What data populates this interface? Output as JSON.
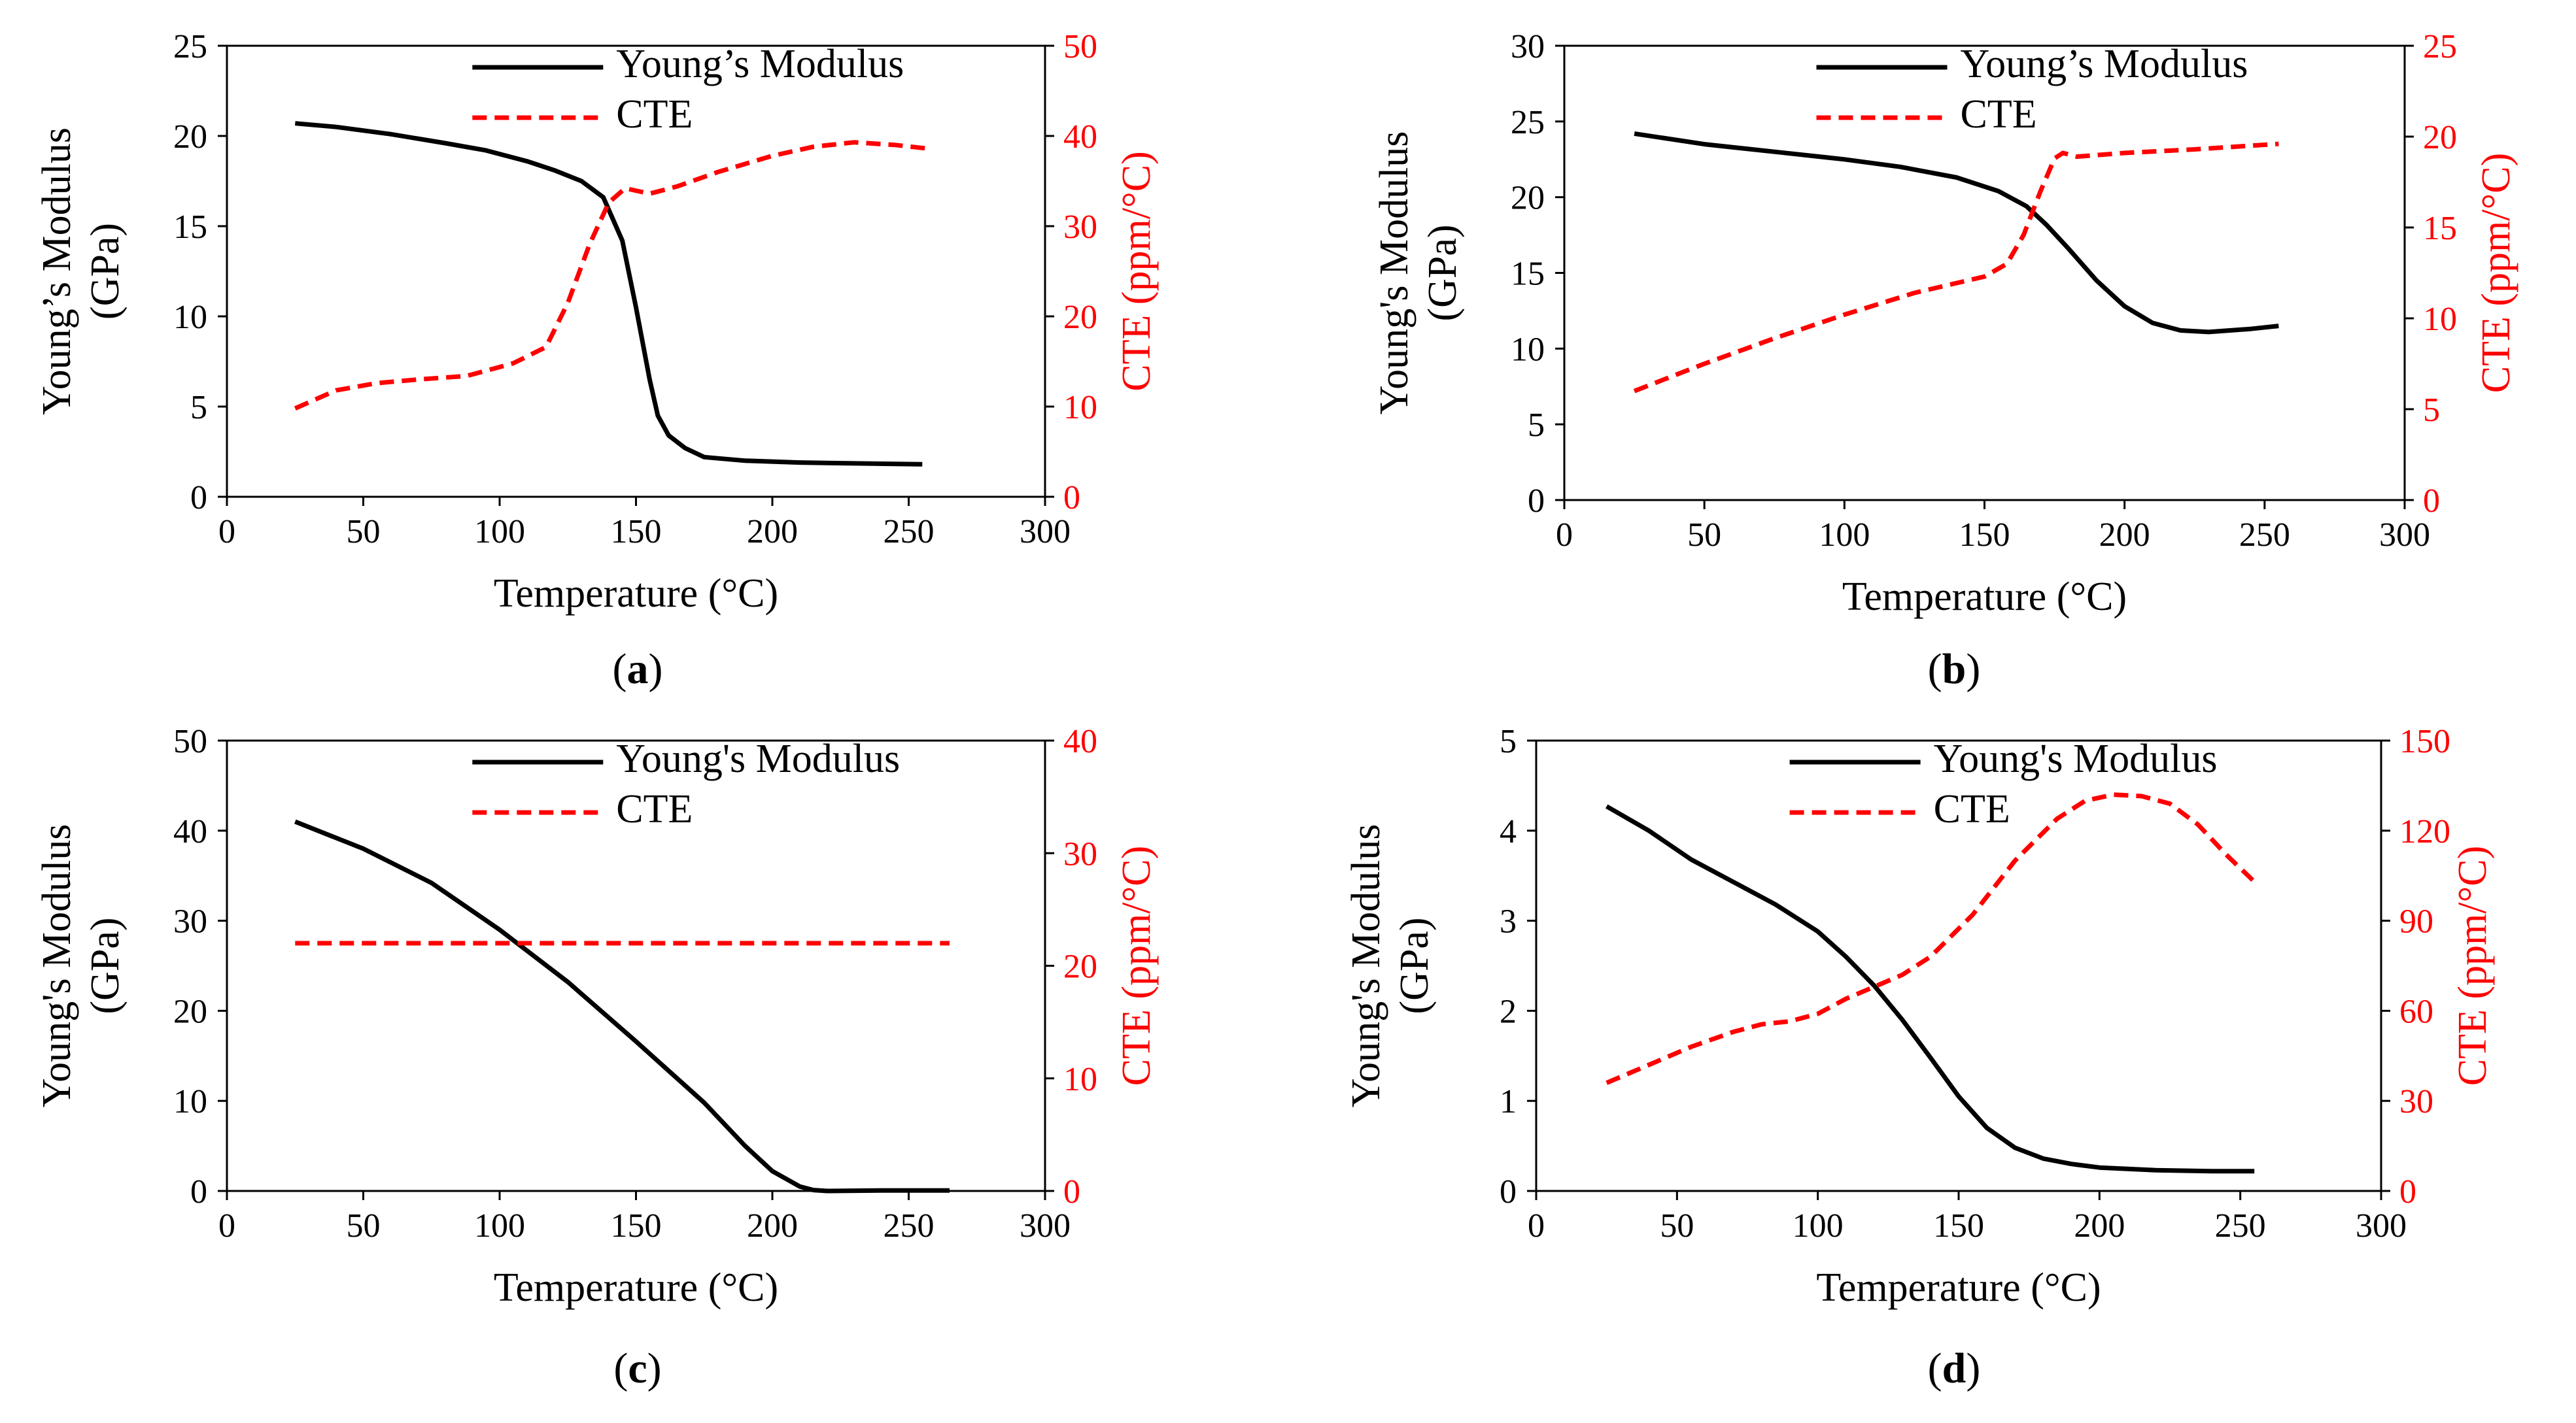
{
  "colors": {
    "modulus": "#000000",
    "cte": "#ff0000",
    "axis": "#000000"
  },
  "chart_data": [
    {
      "type": "line",
      "panel_label": "a",
      "xlabel": "Temperature (°C)",
      "ylabel_line1": "Young’s Modulus",
      "ylabel_line2": "(GPa)",
      "y2label": "CTE (ppm/°C)",
      "xlim": [
        0,
        300
      ],
      "xticks": [
        0,
        50,
        100,
        150,
        200,
        250,
        300
      ],
      "ylim": [
        0,
        25
      ],
      "yticks": [
        0,
        5,
        10,
        15,
        20,
        25
      ],
      "y2lim": [
        0,
        50
      ],
      "y2ticks": [
        0,
        10,
        20,
        30,
        40,
        50
      ],
      "legend": {
        "position": "top",
        "modulus_label": "Young’s Modulus",
        "cte_label": "CTE"
      },
      "series": [
        {
          "name": "Young’s Modulus",
          "axis": "left",
          "style": "solid",
          "x": [
            25,
            40,
            60,
            80,
            95,
            110,
            120,
            130,
            138,
            145,
            150,
            155,
            158,
            162,
            168,
            175,
            190,
            210,
            230,
            255
          ],
          "y": [
            20.7,
            20.5,
            20.1,
            19.6,
            19.2,
            18.6,
            18.1,
            17.5,
            16.6,
            14.2,
            10.5,
            6.5,
            4.5,
            3.4,
            2.7,
            2.2,
            2.0,
            1.9,
            1.85,
            1.8
          ]
        },
        {
          "name": "CTE",
          "axis": "right",
          "style": "dashed",
          "x": [
            25,
            40,
            55,
            70,
            88,
            105,
            117,
            125,
            133,
            140,
            146,
            155,
            165,
            180,
            200,
            215,
            230,
            245,
            257
          ],
          "y": [
            9.8,
            11.8,
            12.6,
            13.0,
            13.4,
            14.8,
            16.6,
            21.5,
            28.0,
            32.6,
            34.2,
            33.6,
            34.4,
            36.0,
            37.8,
            38.8,
            39.3,
            39.0,
            38.6
          ]
        }
      ]
    },
    {
      "type": "line",
      "panel_label": "b",
      "xlabel": "Temperature (°C)",
      "ylabel_line1": "Young's Modulus",
      "ylabel_line2": "(GPa)",
      "y2label": "CTE (ppm/°C)",
      "xlim": [
        0,
        300
      ],
      "xticks": [
        0,
        50,
        100,
        150,
        200,
        250,
        300
      ],
      "ylim": [
        0,
        30
      ],
      "yticks": [
        0,
        5,
        10,
        15,
        20,
        25,
        30
      ],
      "y2lim": [
        0,
        25
      ],
      "y2ticks": [
        0,
        5,
        10,
        15,
        20,
        25
      ],
      "legend": {
        "position": "top",
        "modulus_label": "Young’s Modulus",
        "cte_label": "CTE"
      },
      "series": [
        {
          "name": "Young’s Modulus",
          "axis": "left",
          "style": "solid",
          "x": [
            25,
            50,
            75,
            100,
            120,
            140,
            155,
            165,
            172,
            180,
            190,
            200,
            210,
            220,
            230,
            245,
            255
          ],
          "y": [
            24.2,
            23.5,
            23.0,
            22.5,
            22.0,
            21.3,
            20.4,
            19.4,
            18.2,
            16.6,
            14.5,
            12.8,
            11.7,
            11.2,
            11.1,
            11.3,
            11.5
          ]
        },
        {
          "name": "CTE",
          "axis": "right",
          "style": "dashed",
          "x": [
            25,
            50,
            75,
            100,
            125,
            150,
            158,
            164,
            170,
            175,
            178,
            183,
            200,
            225,
            255
          ],
          "y": [
            6.0,
            7.5,
            8.9,
            10.2,
            11.4,
            12.3,
            13.0,
            14.6,
            17.0,
            18.8,
            19.1,
            18.9,
            19.1,
            19.3,
            19.6
          ]
        }
      ]
    },
    {
      "type": "line",
      "panel_label": "c",
      "xlabel": "Temperature (°C)",
      "ylabel_line1": "Young's Modulus",
      "ylabel_line2": "(GPa)",
      "y2label": "CTE (ppm/°C)",
      "xlim": [
        0,
        300
      ],
      "xticks": [
        0,
        50,
        100,
        150,
        200,
        250,
        300
      ],
      "ylim": [
        0,
        50
      ],
      "yticks": [
        0,
        10,
        20,
        30,
        40,
        50
      ],
      "y2lim": [
        0,
        40
      ],
      "y2ticks": [
        0,
        10,
        20,
        30,
        40
      ],
      "legend": {
        "position": "top",
        "modulus_label": "Young's Modulus",
        "cte_label": "CTE"
      },
      "series": [
        {
          "name": "Young's Modulus",
          "axis": "left",
          "style": "solid",
          "x": [
            25,
            50,
            75,
            100,
            125,
            150,
            175,
            190,
            200,
            210,
            215,
            220,
            240,
            265
          ],
          "y": [
            41.0,
            38.0,
            34.2,
            29.0,
            23.2,
            16.6,
            9.8,
            5.0,
            2.2,
            0.5,
            0.1,
            0.0,
            0.05,
            0.05
          ]
        },
        {
          "name": "CTE",
          "axis": "right",
          "style": "dashed",
          "x": [
            25,
            265
          ],
          "y": [
            22,
            22
          ]
        }
      ]
    },
    {
      "type": "line",
      "panel_label": "d",
      "xlabel": "Temperature (°C)",
      "ylabel_line1": "Young's Modulus",
      "ylabel_line2": "(GPa)",
      "y2label": "CTE (ppm/°C)",
      "xlim": [
        0,
        300
      ],
      "xticks": [
        0,
        50,
        100,
        150,
        200,
        250,
        300
      ],
      "ylim": [
        0,
        5
      ],
      "yticks": [
        0,
        1,
        2,
        3,
        4,
        5
      ],
      "y2lim": [
        0,
        150
      ],
      "y2ticks": [
        0,
        30,
        60,
        90,
        120,
        150
      ],
      "legend": {
        "position": "top",
        "modulus_label": "Young's Modulus",
        "cte_label": "CTE"
      },
      "series": [
        {
          "name": "Young's Modulus",
          "axis": "left",
          "style": "solid",
          "x": [
            25,
            40,
            55,
            70,
            85,
            100,
            110,
            120,
            130,
            140,
            150,
            160,
            170,
            180,
            190,
            200,
            220,
            240,
            255
          ],
          "y": [
            4.27,
            4.0,
            3.68,
            3.43,
            3.18,
            2.88,
            2.6,
            2.28,
            1.9,
            1.48,
            1.05,
            0.7,
            0.48,
            0.36,
            0.3,
            0.26,
            0.23,
            0.22,
            0.22
          ]
        },
        {
          "name": "CTE",
          "axis": "right",
          "style": "dashed",
          "x": [
            25,
            40,
            55,
            70,
            80,
            90,
            100,
            110,
            120,
            130,
            140,
            155,
            170,
            185,
            195,
            205,
            215,
            225,
            235,
            245,
            255
          ],
          "y": [
            36,
            42,
            48,
            53,
            55.5,
            56.5,
            59,
            64,
            68,
            72,
            78,
            92,
            110,
            124,
            130,
            132,
            131.5,
            129,
            122,
            112,
            103
          ]
        }
      ]
    }
  ]
}
